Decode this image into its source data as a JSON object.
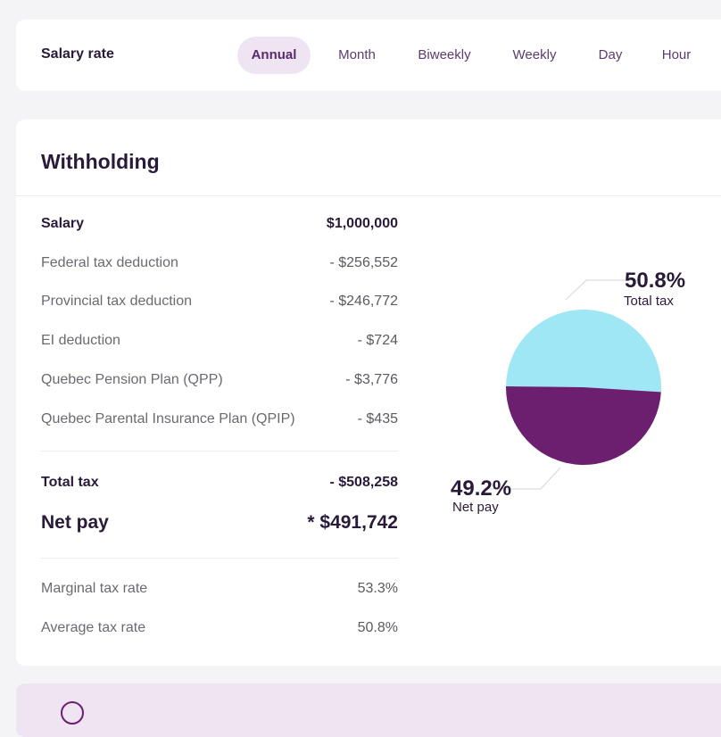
{
  "salary_rate": {
    "title": "Salary rate",
    "tabs": [
      {
        "label": "Annual",
        "active": true
      },
      {
        "label": "Month",
        "active": false
      },
      {
        "label": "Biweekly",
        "active": false
      },
      {
        "label": "Weekly",
        "active": false
      },
      {
        "label": "Day",
        "active": false
      },
      {
        "label": "Hour",
        "active": false
      }
    ]
  },
  "withholding": {
    "title": "Withholding",
    "salary": {
      "label": "Salary",
      "value": "$1,000,000"
    },
    "deductions": [
      {
        "label": "Federal tax deduction",
        "value": "- $256,552"
      },
      {
        "label": "Provincial tax deduction",
        "value": "- $246,772"
      },
      {
        "label": "EI deduction",
        "value": "- $724"
      },
      {
        "label": "Quebec Pension Plan (QPP)",
        "value": "- $3,776"
      },
      {
        "label": "Quebec Parental Insurance Plan (QPIP)",
        "value": "- $435"
      }
    ],
    "total_tax": {
      "label": "Total tax",
      "value": "- $508,258"
    },
    "net_pay": {
      "label": "Net pay",
      "value": "* $491,742"
    },
    "marginal_rate": {
      "label": "Marginal tax rate",
      "value": "53.3%"
    },
    "average_rate": {
      "label": "Average tax rate",
      "value": "50.8%"
    }
  },
  "chart_data": {
    "type": "pie",
    "slices": [
      {
        "label": "Total tax",
        "value": 50.8,
        "display": "50.8%",
        "color": "#a0e7f5"
      },
      {
        "label": "Net pay",
        "value": 49.2,
        "display": "49.2%",
        "color": "#6b1f6e"
      }
    ]
  }
}
